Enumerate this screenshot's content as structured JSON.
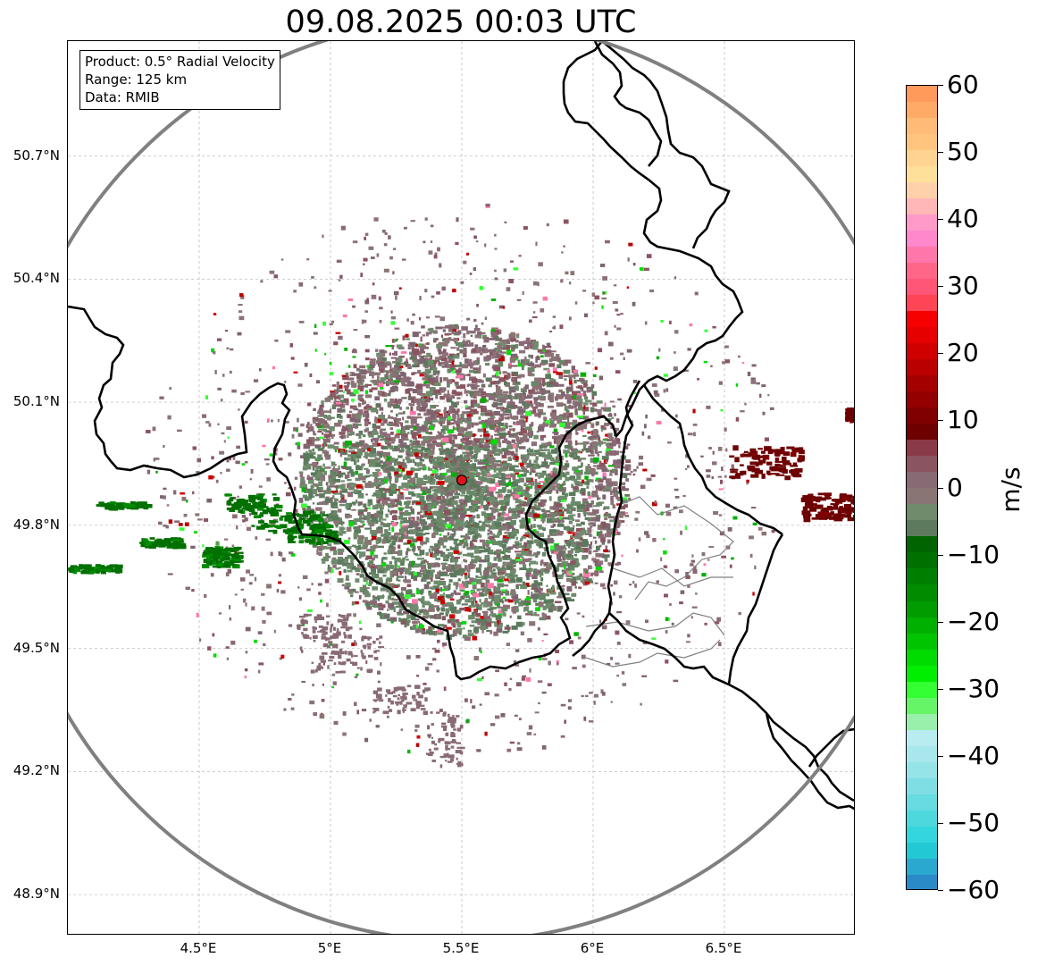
{
  "title": "09.08.2025 00:03 UTC",
  "info_box": {
    "product": "Product: 0.5° Radial Velocity",
    "range": "Range: 125 km",
    "data": "Data: RMIB"
  },
  "map": {
    "lon_min": 4.0,
    "lon_max": 7.0,
    "lat_min": 48.8,
    "lat_max": 50.98,
    "radar_site": {
      "lon": 5.5,
      "lat": 49.91,
      "color": "#e0151c"
    },
    "lat_ticks": [
      {
        "value": 48.9,
        "label": "48.9°N"
      },
      {
        "value": 49.2,
        "label": "49.2°N"
      },
      {
        "value": 49.5,
        "label": "49.5°N"
      },
      {
        "value": 49.8,
        "label": "49.8°N"
      },
      {
        "value": 50.1,
        "label": "50.1°N"
      },
      {
        "value": 50.4,
        "label": "50.4°N"
      },
      {
        "value": 50.7,
        "label": "50.7°N"
      }
    ],
    "lon_ticks": [
      {
        "value": 4.5,
        "label": "4.5°E"
      },
      {
        "value": 5.0,
        "label": "5°E"
      },
      {
        "value": 5.5,
        "label": "5.5°E"
      },
      {
        "value": 6.0,
        "label": "6°E"
      },
      {
        "value": 6.5,
        "label": "6.5°E"
      }
    ],
    "range_ring_color": "#808080",
    "border_color": "#000000",
    "grid": true
  },
  "colorbar": {
    "unit": "m/s",
    "min": -60,
    "max": 60,
    "ticks": [
      {
        "value": 60,
        "label": "60"
      },
      {
        "value": 50,
        "label": "50"
      },
      {
        "value": 40,
        "label": "40"
      },
      {
        "value": 30,
        "label": "30"
      },
      {
        "value": 20,
        "label": "20"
      },
      {
        "value": 10,
        "label": "10"
      },
      {
        "value": 0,
        "label": "0"
      },
      {
        "value": -10,
        "label": "−10"
      },
      {
        "value": -20,
        "label": "−20"
      },
      {
        "value": -30,
        "label": "−30"
      },
      {
        "value": -40,
        "label": "−40"
      },
      {
        "value": -50,
        "label": "−50"
      },
      {
        "value": -60,
        "label": "−60"
      }
    ],
    "colors": [
      "#ff9a5a",
      "#ffaa66",
      "#ffbb77",
      "#ffc57f",
      "#ffd490",
      "#ffe09a",
      "#ffd1ab",
      "#ffb7b7",
      "#ff9ac9",
      "#ff88cc",
      "#ff77aa",
      "#ff6688",
      "#ff5577",
      "#ff4455",
      "#f70000",
      "#e60000",
      "#d00000",
      "#bb0000",
      "#a50000",
      "#940000",
      "#800000",
      "#6e0000",
      "#8a3a48",
      "#8a5560",
      "#886a75",
      "#8a7575",
      "#708a6c",
      "#5e7a5e",
      "#006400",
      "#007000",
      "#007e00",
      "#008c00",
      "#009c00",
      "#00b000",
      "#00c400",
      "#00dc00",
      "#00ee00",
      "#33ff33",
      "#66f566",
      "#99f0aa",
      "#b8ecf0",
      "#a8e8ec",
      "#94e4e8",
      "#7fdee4",
      "#66dbe0",
      "#4dd8dd",
      "#33d6dc",
      "#22c8d4",
      "#2aa8d0",
      "#2a8ac8"
    ]
  }
}
